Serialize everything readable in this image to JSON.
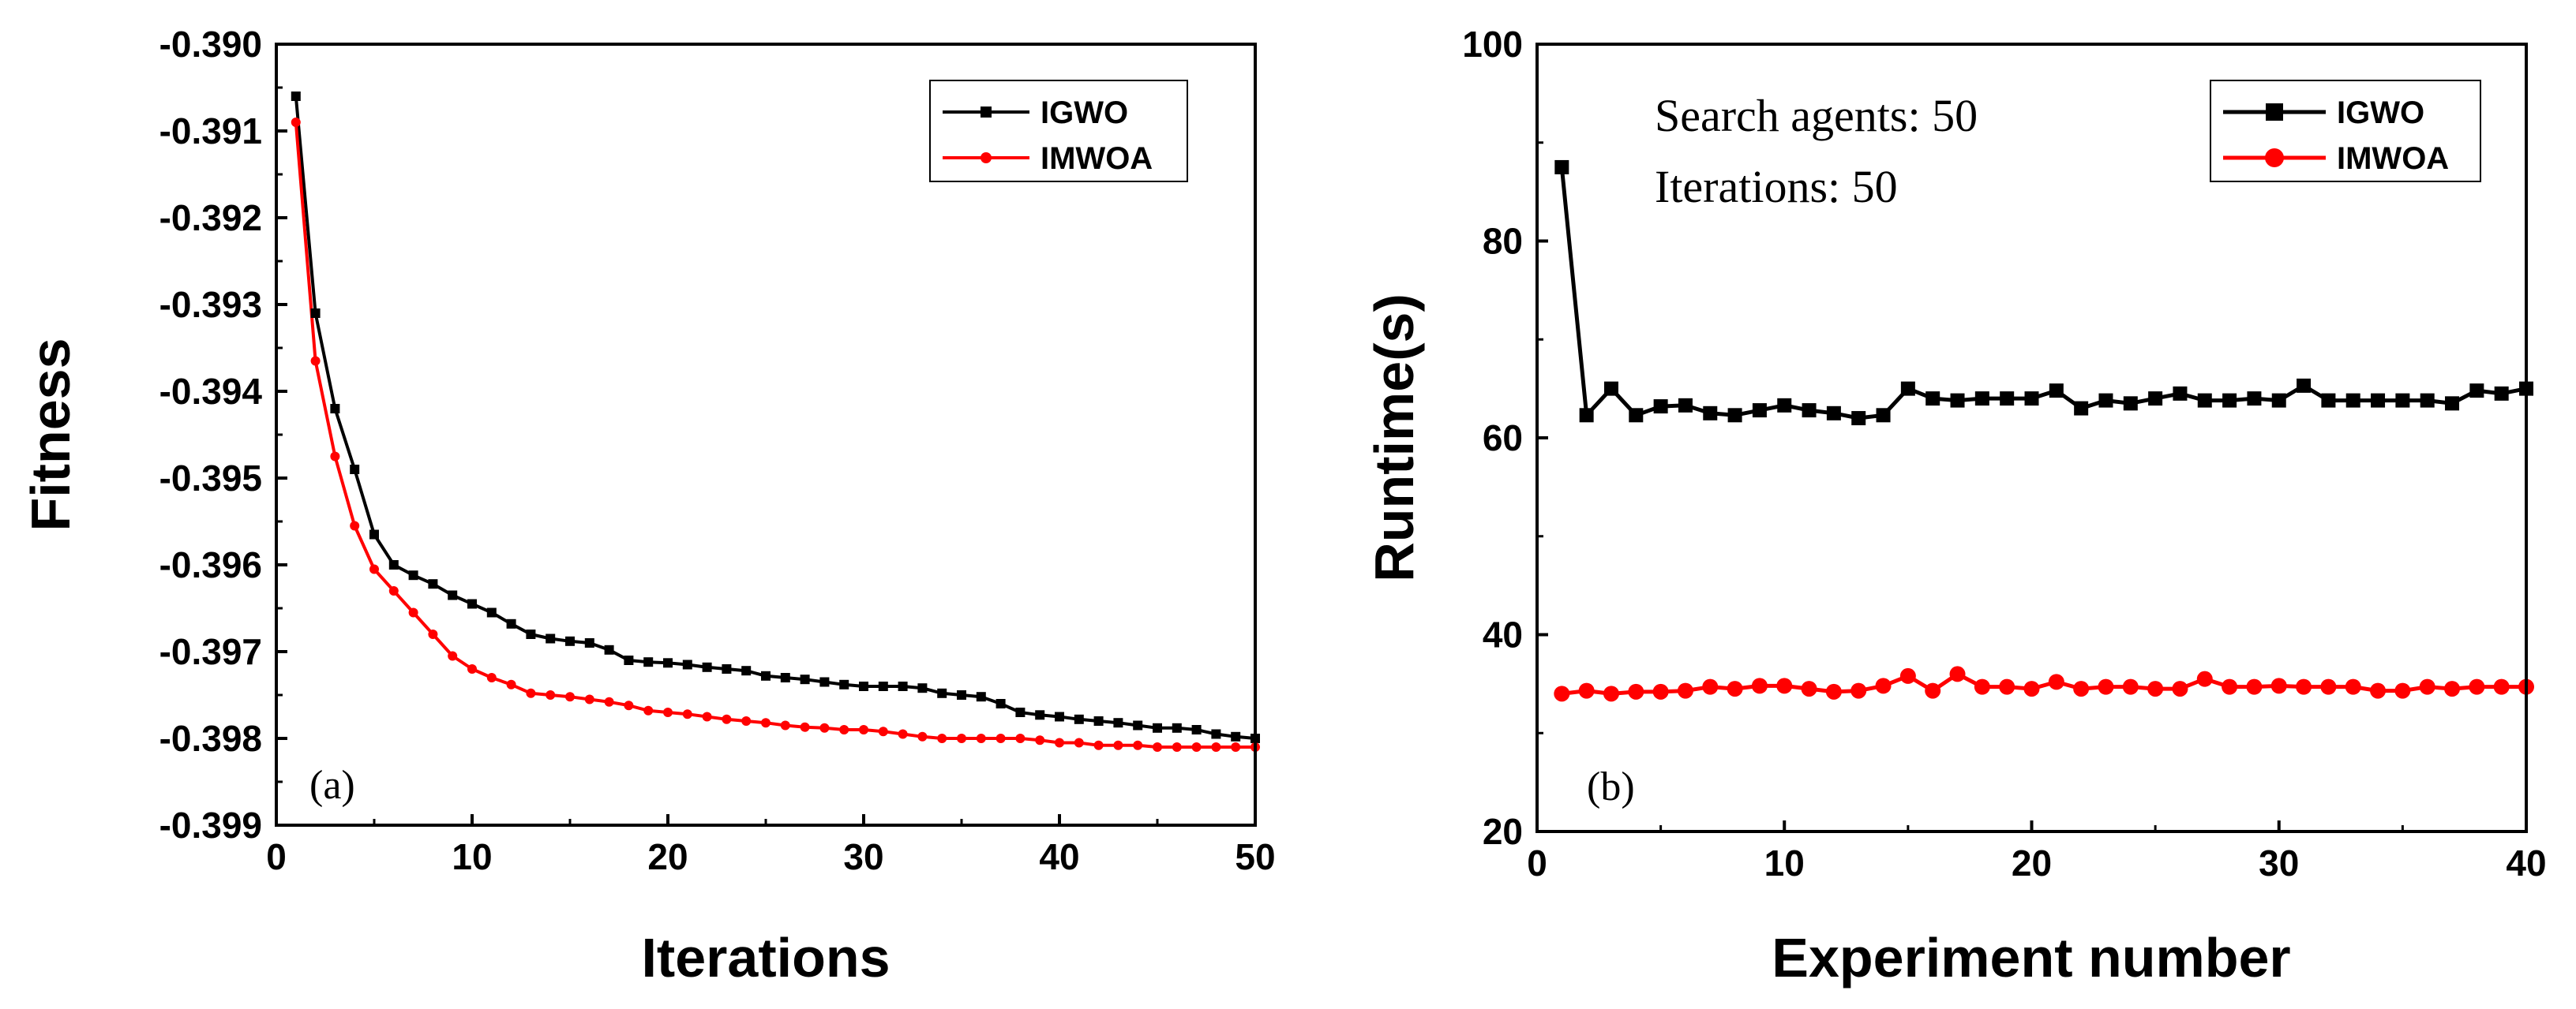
{
  "chart_data": [
    {
      "type": "line",
      "panel_label": "(a)",
      "xlabel": "Iterations",
      "ylabel": "Fitness",
      "xlim": [
        0,
        50
      ],
      "ylim": [
        -0.399,
        -0.39
      ],
      "xticks": [
        "0",
        "10",
        "20",
        "30",
        "40",
        "50"
      ],
      "yticks": [
        "-0.390",
        "-0.391",
        "-0.392",
        "-0.393",
        "-0.394",
        "-0.395",
        "-0.396",
        "-0.397",
        "-0.398",
        "-0.399"
      ],
      "legend_position": "top-right",
      "x": [
        1,
        2,
        3,
        4,
        5,
        6,
        7,
        8,
        9,
        10,
        11,
        12,
        13,
        14,
        15,
        16,
        17,
        18,
        19,
        20,
        21,
        22,
        23,
        24,
        25,
        26,
        27,
        28,
        29,
        30,
        31,
        32,
        33,
        34,
        35,
        36,
        37,
        38,
        39,
        40,
        41,
        42,
        43,
        44,
        45,
        46,
        47,
        48,
        49,
        50
      ],
      "series": [
        {
          "name": "IGWO",
          "color": "#000000",
          "marker": "square",
          "values": [
            -0.3906,
            -0.3931,
            -0.3942,
            -0.3949,
            -0.39565,
            -0.396,
            -0.39612,
            -0.39622,
            -0.39635,
            -0.39645,
            -0.39655,
            -0.39668,
            -0.3968,
            -0.39685,
            -0.39688,
            -0.3969,
            -0.39698,
            -0.3971,
            -0.39712,
            -0.39713,
            -0.39715,
            -0.39718,
            -0.3972,
            -0.39722,
            -0.39728,
            -0.3973,
            -0.39732,
            -0.39735,
            -0.39738,
            -0.3974,
            -0.3974,
            -0.3974,
            -0.39742,
            -0.39748,
            -0.3975,
            -0.39752,
            -0.3976,
            -0.3977,
            -0.39773,
            -0.39775,
            -0.39778,
            -0.3978,
            -0.39782,
            -0.39785,
            -0.39788,
            -0.39788,
            -0.3979,
            -0.39795,
            -0.39798,
            -0.398
          ]
        },
        {
          "name": "IMWOA",
          "color": "#ff0000",
          "marker": "circle",
          "values": [
            -0.3909,
            -0.39365,
            -0.39475,
            -0.39555,
            -0.39605,
            -0.3963,
            -0.39655,
            -0.3968,
            -0.39705,
            -0.3972,
            -0.3973,
            -0.39738,
            -0.39748,
            -0.3975,
            -0.39752,
            -0.39755,
            -0.39758,
            -0.39762,
            -0.39768,
            -0.3977,
            -0.39772,
            -0.39775,
            -0.39778,
            -0.3978,
            -0.39782,
            -0.39785,
            -0.39787,
            -0.39788,
            -0.3979,
            -0.3979,
            -0.39792,
            -0.39795,
            -0.39798,
            -0.398,
            -0.398,
            -0.398,
            -0.398,
            -0.398,
            -0.39802,
            -0.39805,
            -0.39805,
            -0.39808,
            -0.39808,
            -0.39808,
            -0.3981,
            -0.3981,
            -0.3981,
            -0.3981,
            -0.3981,
            -0.3981
          ]
        }
      ]
    },
    {
      "type": "line",
      "panel_label": "(b)",
      "xlabel": "Experiment number",
      "ylabel": "Runtime(s)",
      "xlim": [
        0,
        40
      ],
      "ylim": [
        20,
        100
      ],
      "xticks": [
        "0",
        "10",
        "20",
        "30",
        "40"
      ],
      "yticks": [
        "20",
        "40",
        "60",
        "80",
        "100"
      ],
      "legend_position": "top-right",
      "annotations": [
        "Search agents: 50",
        "Iterations: 50"
      ],
      "x": [
        1,
        2,
        3,
        4,
        5,
        6,
        7,
        8,
        9,
        10,
        11,
        12,
        13,
        14,
        15,
        16,
        17,
        18,
        19,
        20,
        21,
        22,
        23,
        24,
        25,
        26,
        27,
        28,
        29,
        30,
        31,
        32,
        33,
        34,
        35,
        36,
        37,
        38,
        39,
        40
      ],
      "series": [
        {
          "name": "IGWO",
          "color": "#000000",
          "marker": "square",
          "values": [
            87.5,
            62.3,
            65,
            62.3,
            63.2,
            63.3,
            62.5,
            62.3,
            62.8,
            63.3,
            62.8,
            62.5,
            62,
            62.3,
            65,
            64,
            63.8,
            64,
            64,
            64,
            64.8,
            63,
            63.8,
            63.5,
            64,
            64.5,
            63.8,
            63.8,
            64,
            63.8,
            65.3,
            63.8,
            63.8,
            63.8,
            63.8,
            63.8,
            63.5,
            64.8,
            64.5,
            65
          ]
        },
        {
          "name": "IMWOA",
          "color": "#ff0000",
          "marker": "circle",
          "values": [
            34,
            34.3,
            34,
            34.2,
            34.2,
            34.3,
            34.7,
            34.5,
            34.8,
            34.8,
            34.5,
            34.2,
            34.3,
            34.8,
            35.8,
            34.3,
            36,
            34.7,
            34.7,
            34.5,
            35.2,
            34.5,
            34.7,
            34.7,
            34.5,
            34.5,
            35.5,
            34.7,
            34.7,
            34.8,
            34.7,
            34.7,
            34.7,
            34.3,
            34.3,
            34.7,
            34.5,
            34.7,
            34.7,
            34.7
          ]
        }
      ]
    }
  ]
}
